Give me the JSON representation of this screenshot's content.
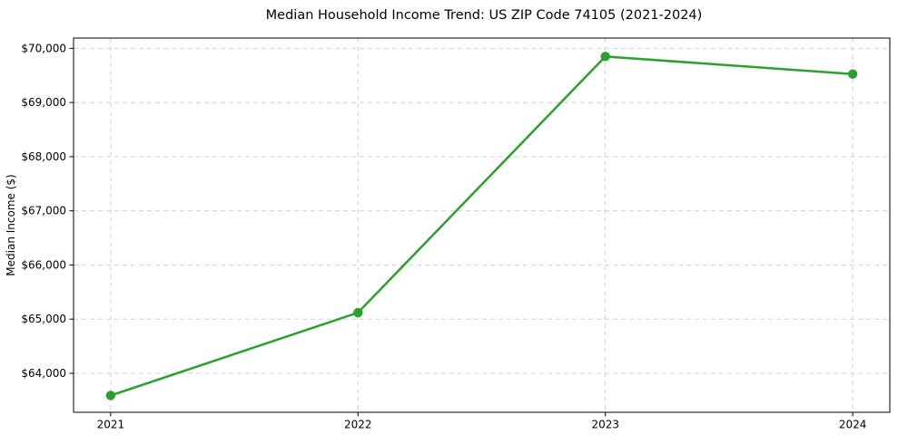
{
  "chart_data": {
    "type": "line",
    "title": "Median Household Income Trend: US ZIP Code 74105 (2021-2024)",
    "xlabel": "",
    "ylabel": "Median Income ($)",
    "x": [
      2021,
      2022,
      2023,
      2024
    ],
    "xtick_labels": [
      "2021",
      "2022",
      "2023",
      "2024"
    ],
    "series": [
      {
        "name": "Median household income",
        "values": [
          63590,
          65120,
          69850,
          69525
        ],
        "color": "#2ca02c",
        "marker": "circle"
      }
    ],
    "yticks": [
      64000,
      65000,
      66000,
      67000,
      68000,
      69000,
      70000
    ],
    "ytick_labels": [
      "$64,000",
      "$65,000",
      "$66,000",
      "$67,000",
      "$68,000",
      "$69,000",
      "$70,000"
    ],
    "xlim": [
      2020.85,
      2024.15
    ],
    "ylim": [
      63280,
      70190
    ],
    "grid": true,
    "grid_style": "dashed",
    "grid_color": "#cccccc",
    "background_color": "#ffffff",
    "spine_color": "#000000",
    "legend": "none"
  }
}
